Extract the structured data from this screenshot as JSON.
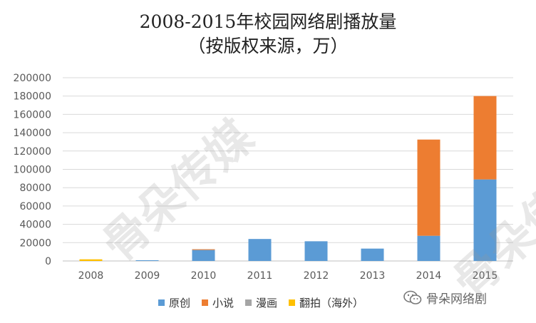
{
  "chart_data": {
    "type": "bar",
    "stacked": true,
    "title_line1": "2008-2015年校园网络剧播放量",
    "title_line2": "（按版权来源，万）",
    "categories": [
      "2008",
      "2009",
      "2010",
      "2011",
      "2012",
      "2013",
      "2014",
      "2015"
    ],
    "series": [
      {
        "name": "原创",
        "color": "#5b9bd5",
        "values": [
          0,
          800,
          12000,
          24000,
          21500,
          13500,
          27500,
          89000
        ]
      },
      {
        "name": "小说",
        "color": "#ed7d31",
        "values": [
          0,
          0,
          800,
          0,
          0,
          0,
          105000,
          91000
        ]
      },
      {
        "name": "漫画",
        "color": "#a5a5a5",
        "values": [
          0,
          0,
          0,
          0,
          0,
          0,
          0,
          0
        ]
      },
      {
        "name": "翻拍（海外）",
        "color": "#ffc000",
        "values": [
          1800,
          0,
          0,
          0,
          0,
          0,
          0,
          0
        ]
      }
    ],
    "ylim": [
      0,
      200000
    ],
    "yticks": [
      "0",
      "20000",
      "40000",
      "60000",
      "80000",
      "100000",
      "120000",
      "140000",
      "160000",
      "180000",
      "200000"
    ],
    "grid": true,
    "legend_position": "bottom"
  },
  "source_label": "骨朵网络剧",
  "watermark_text": "骨朵传媒"
}
